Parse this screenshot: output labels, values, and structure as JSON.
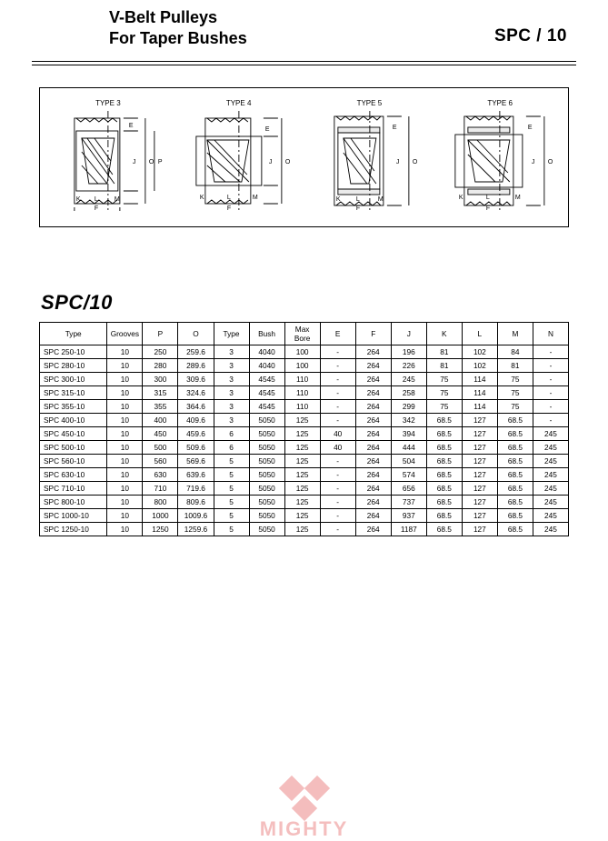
{
  "header": {
    "title_line1": "V-Belt  Pulleys",
    "title_line2": "For Taper Bushes",
    "code": "SPC / 10"
  },
  "diagrams": {
    "labels": [
      "TYPE 3",
      "TYPE 4",
      "TYPE 5",
      "TYPE 6"
    ],
    "dims": [
      "E",
      "J",
      "P",
      "O",
      "K",
      "L",
      "M",
      "F"
    ]
  },
  "section_title": "SPC/10",
  "table": {
    "columns": [
      "Type",
      "Grooves",
      "P",
      "O",
      "Type",
      "Bush",
      "Max\nBore",
      "E",
      "F",
      "J",
      "K",
      "L",
      "M",
      "N"
    ],
    "rows": [
      [
        "SPC  250-10",
        "10",
        "250",
        "259.6",
        "3",
        "4040",
        "100",
        "-",
        "264",
        "196",
        "81",
        "102",
        "84",
        "-"
      ],
      [
        "SPC  280-10",
        "10",
        "280",
        "289.6",
        "3",
        "4040",
        "100",
        "-",
        "264",
        "226",
        "81",
        "102",
        "81",
        "-"
      ],
      [
        "SPC  300-10",
        "10",
        "300",
        "309.6",
        "3",
        "4545",
        "110",
        "-",
        "264",
        "245",
        "75",
        "114",
        "75",
        "-"
      ],
      [
        "SPC  315-10",
        "10",
        "315",
        "324.6",
        "3",
        "4545",
        "110",
        "-",
        "264",
        "258",
        "75",
        "114",
        "75",
        "-"
      ],
      [
        "SPC  355-10",
        "10",
        "355",
        "364.6",
        "3",
        "4545",
        "110",
        "-",
        "264",
        "299",
        "75",
        "114",
        "75",
        "-"
      ],
      [
        "SPC  400-10",
        "10",
        "400",
        "409.6",
        "3",
        "5050",
        "125",
        "-",
        "264",
        "342",
        "68.5",
        "127",
        "68.5",
        "-"
      ],
      [
        "SPC  450-10",
        "10",
        "450",
        "459.6",
        "6",
        "5050",
        "125",
        "40",
        "264",
        "394",
        "68.5",
        "127",
        "68.5",
        "245"
      ],
      [
        "SPC  500-10",
        "10",
        "500",
        "509.6",
        "6",
        "5050",
        "125",
        "40",
        "264",
        "444",
        "68.5",
        "127",
        "68.5",
        "245"
      ],
      [
        "SPC  560-10",
        "10",
        "560",
        "569.6",
        "5",
        "5050",
        "125",
        "-",
        "264",
        "504",
        "68.5",
        "127",
        "68.5",
        "245"
      ],
      [
        "SPC  630-10",
        "10",
        "630",
        "639.6",
        "5",
        "5050",
        "125",
        "-",
        "264",
        "574",
        "68.5",
        "127",
        "68.5",
        "245"
      ],
      [
        "SPC  710-10",
        "10",
        "710",
        "719.6",
        "5",
        "5050",
        "125",
        "-",
        "264",
        "656",
        "68.5",
        "127",
        "68.5",
        "245"
      ],
      [
        "SPC  800-10",
        "10",
        "800",
        "809.6",
        "5",
        "5050",
        "125",
        "-",
        "264",
        "737",
        "68.5",
        "127",
        "68.5",
        "245"
      ],
      [
        "SPC  1000-10",
        "10",
        "1000",
        "1009.6",
        "5",
        "5050",
        "125",
        "-",
        "264",
        "937",
        "68.5",
        "127",
        "68.5",
        "245"
      ],
      [
        "SPC  1250-10",
        "10",
        "1250",
        "1259.6",
        "5",
        "5050",
        "125",
        "-",
        "264",
        "1187",
        "68.5",
        "127",
        "68.5",
        "245"
      ]
    ]
  },
  "watermark": {
    "text": "MIGHTY",
    "color": "#dc2828"
  },
  "colors": {
    "line": "#000000",
    "bg": "#ffffff",
    "hatch": "#000000"
  }
}
